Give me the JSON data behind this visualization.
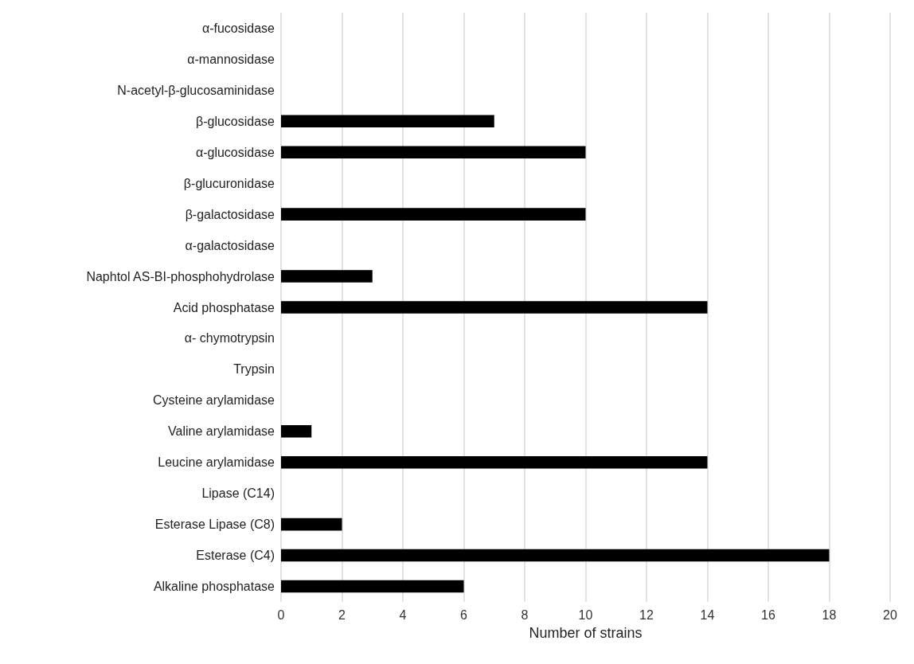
{
  "chart_data": {
    "type": "bar",
    "orientation": "horizontal",
    "xlabel": "Number of strains",
    "categories": [
      "α-fucosidase",
      "α-mannosidase",
      "N-acetyl-β-glucosaminidase",
      "β-glucosidase",
      "α-glucosidase",
      "β-glucuronidase",
      "β-galactosidase",
      "α-galactosidase",
      "Naphtol AS-BI-phosphohydrolase",
      "Acid phosphatase",
      "α- chymotrypsin",
      "Trypsin",
      "Cysteine arylamidase",
      "Valine arylamidase",
      "Leucine arylamidase",
      "Lipase (C14)",
      "Esterase Lipase (C8)",
      "Esterase (C4)",
      "Alkaline phosphatase"
    ],
    "values": [
      0,
      0,
      0,
      7,
      10,
      0,
      10,
      0,
      3,
      14,
      0,
      0,
      0,
      1,
      14,
      0,
      2,
      18,
      6
    ],
    "color": "#000000",
    "xlim": [
      0,
      20
    ],
    "xticks": [
      0,
      2,
      4,
      6,
      8,
      10,
      12,
      14,
      16,
      18,
      20
    ],
    "grid": "x"
  }
}
